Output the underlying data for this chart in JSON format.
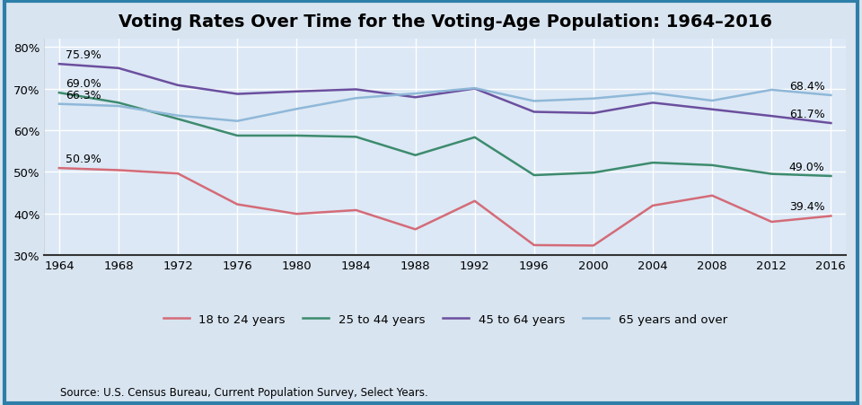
{
  "title": "Voting Rates Over Time for the Voting-Age Population: 1964–2016",
  "source": "Source: U.S. Census Bureau, Current Population Survey, Select Years.",
  "years": [
    1964,
    1968,
    1972,
    1976,
    1980,
    1984,
    1988,
    1992,
    1996,
    2000,
    2004,
    2008,
    2012,
    2016
  ],
  "series": [
    {
      "label": "18 to 24 years",
      "color": "#d46b78",
      "data": [
        50.9,
        50.4,
        49.6,
        42.2,
        39.9,
        40.8,
        36.2,
        43.0,
        32.4,
        32.3,
        41.9,
        44.3,
        38.0,
        39.4
      ],
      "start_label": "50.9%",
      "end_label": "39.4%"
    },
    {
      "label": "25 to 44 years",
      "color": "#3d8b6e",
      "data": [
        69.0,
        66.6,
        62.7,
        58.7,
        58.7,
        58.4,
        54.0,
        58.3,
        49.2,
        49.8,
        52.2,
        51.6,
        49.5,
        49.0
      ],
      "start_label": "69.0%",
      "end_label": "49.0%"
    },
    {
      "label": "45 to 64 years",
      "color": "#6b4f9e",
      "data": [
        75.9,
        74.9,
        70.8,
        68.7,
        69.3,
        69.8,
        67.9,
        70.0,
        64.4,
        64.1,
        66.6,
        65.0,
        63.4,
        61.7
      ],
      "start_label": "75.9%",
      "end_label": "61.7%"
    },
    {
      "label": "65 years and over",
      "color": "#8fb8d8",
      "data": [
        66.3,
        65.8,
        63.5,
        62.2,
        65.1,
        67.7,
        68.8,
        70.1,
        67.0,
        67.6,
        68.9,
        67.1,
        69.7,
        68.4
      ],
      "start_label": "66.3%",
      "end_label": "68.4%"
    }
  ],
  "ylim": [
    30,
    82
  ],
  "yticks": [
    30,
    40,
    50,
    60,
    70,
    80
  ],
  "background_color": "#d8e4f0",
  "plot_bg_color": "#dce8f5",
  "title_fontsize": 14,
  "legend_fontsize": 9.5,
  "axis_fontsize": 9.5,
  "border_color": "#2e7fa8"
}
